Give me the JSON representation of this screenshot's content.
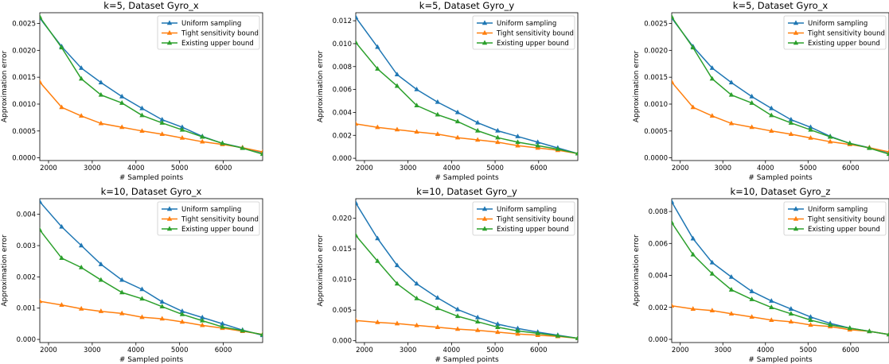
{
  "colors": {
    "uniform": "#1f77b4",
    "tight": "#ff7f0e",
    "existing": "#2ca02c"
  },
  "chart_data": [
    {
      "type": "line",
      "title": "k=5, Dataset Gyro_x",
      "xlabel": "# Sampled points",
      "ylabel": "Approximation error",
      "xlim": [
        1800,
        6900
      ],
      "ylim": [
        -5e-05,
        0.0027
      ],
      "xticks": [
        2000,
        3000,
        4000,
        5000,
        6000
      ],
      "xtick_labels": [
        "2000",
        "3000",
        "4000",
        "5000",
        "6000"
      ],
      "yticks": [
        0,
        0.0005,
        0.001,
        0.0015,
        0.002,
        0.0025
      ],
      "ytick_labels": [
        "0.0000",
        "0.0005",
        "0.0010",
        "0.0015",
        "0.0020",
        "0.0025"
      ],
      "legend_position": "top-right",
      "x": [
        1800,
        2300,
        2750,
        3200,
        3680,
        4140,
        4600,
        5060,
        5520,
        5980,
        6440,
        6900
      ],
      "series": [
        {
          "name": "Uniform sampling",
          "color_key": "uniform",
          "values": [
            0.0026,
            0.00207,
            0.00167,
            0.0014,
            0.00114,
            0.00092,
            0.00071,
            0.00057,
            0.0004,
            0.00027,
            0.00019,
            0.0001
          ]
        },
        {
          "name": "Tight sensitivity bound",
          "color_key": "tight",
          "values": [
            0.00141,
            0.00094,
            0.00078,
            0.00064,
            0.00057,
            0.0005,
            0.00044,
            0.00037,
            0.0003,
            0.00025,
            0.00019,
            0.00011
          ]
        },
        {
          "name": "Existing upper bound",
          "color_key": "existing",
          "values": [
            0.00262,
            0.00205,
            0.00147,
            0.00117,
            0.00102,
            0.00079,
            0.00065,
            0.00052,
            0.00039,
            0.00027,
            0.00018,
            7e-05
          ]
        }
      ]
    },
    {
      "type": "line",
      "title": "k=5, Dataset Gyro_y",
      "xlabel": "# Sampled points",
      "ylabel": "Approximation error",
      "xlim": [
        1800,
        6900
      ],
      "ylim": [
        -0.0002,
        0.0127
      ],
      "xticks": [
        2000,
        3000,
        4000,
        5000,
        6000
      ],
      "xtick_labels": [
        "2000",
        "3000",
        "4000",
        "5000",
        "6000"
      ],
      "yticks": [
        0,
        0.002,
        0.004,
        0.006,
        0.008,
        0.01,
        0.012
      ],
      "ytick_labels": [
        "0.000",
        "0.002",
        "0.004",
        "0.006",
        "0.008",
        "0.010",
        "0.012"
      ],
      "legend_position": "top-right",
      "x": [
        1800,
        2300,
        2750,
        3200,
        3680,
        4140,
        4600,
        5060,
        5520,
        5980,
        6440,
        6900
      ],
      "series": [
        {
          "name": "Uniform sampling",
          "color_key": "uniform",
          "values": [
            0.0123,
            0.0097,
            0.0073,
            0.006,
            0.0049,
            0.004,
            0.0031,
            0.0024,
            0.0019,
            0.0014,
            0.0009,
            0.0004
          ]
        },
        {
          "name": "Tight sensitivity bound",
          "color_key": "tight",
          "values": [
            0.003,
            0.0027,
            0.0025,
            0.0023,
            0.0021,
            0.0018,
            0.0016,
            0.0014,
            0.0011,
            0.0009,
            0.0007,
            0.0004
          ]
        },
        {
          "name": "Existing upper bound",
          "color_key": "existing",
          "values": [
            0.0101,
            0.0078,
            0.0063,
            0.0046,
            0.0038,
            0.0032,
            0.0024,
            0.0018,
            0.0014,
            0.0011,
            0.0008,
            0.0004
          ]
        }
      ]
    },
    {
      "type": "line",
      "title": "k=5, Dataset Gyro_x",
      "xlabel": "# Sampled points",
      "ylabel": "Approximation error",
      "xlim": [
        1800,
        6900
      ],
      "ylim": [
        -5e-05,
        0.0027
      ],
      "xticks": [
        2000,
        3000,
        4000,
        5000,
        6000
      ],
      "xtick_labels": [
        "2000",
        "3000",
        "4000",
        "5000",
        "6000"
      ],
      "yticks": [
        0,
        0.0005,
        0.001,
        0.0015,
        0.002,
        0.0025
      ],
      "ytick_labels": [
        "0.0000",
        "0.0005",
        "0.0010",
        "0.0015",
        "0.0020",
        "0.0025"
      ],
      "legend_position": "top-right",
      "x": [
        1800,
        2300,
        2750,
        3200,
        3680,
        4140,
        4600,
        5060,
        5520,
        5980,
        6440,
        6900
      ],
      "series": [
        {
          "name": "Uniform sampling",
          "color_key": "uniform",
          "values": [
            0.0026,
            0.00207,
            0.00167,
            0.0014,
            0.00114,
            0.00092,
            0.00071,
            0.00057,
            0.0004,
            0.00027,
            0.00019,
            0.0001
          ]
        },
        {
          "name": "Tight sensitivity bound",
          "color_key": "tight",
          "values": [
            0.00141,
            0.00094,
            0.00078,
            0.00064,
            0.00057,
            0.0005,
            0.00044,
            0.00037,
            0.0003,
            0.00025,
            0.00019,
            0.00011
          ]
        },
        {
          "name": "Existing upper bound",
          "color_key": "existing",
          "values": [
            0.00262,
            0.00205,
            0.00147,
            0.00117,
            0.00102,
            0.00079,
            0.00065,
            0.00052,
            0.00039,
            0.00027,
            0.00018,
            7e-05
          ]
        }
      ]
    },
    {
      "type": "line",
      "title": "k=10, Dataset Gyro_x",
      "xlabel": "# Sampled points",
      "ylabel": "Approximation error",
      "xlim": [
        1800,
        6900
      ],
      "ylim": [
        -0.0001,
        0.0045
      ],
      "xticks": [
        2000,
        3000,
        4000,
        5000,
        6000
      ],
      "xtick_labels": [
        "2000",
        "3000",
        "4000",
        "5000",
        "6000"
      ],
      "yticks": [
        0,
        0.001,
        0.002,
        0.003,
        0.004
      ],
      "ytick_labels": [
        "0.000",
        "0.001",
        "0.002",
        "0.003",
        "0.004"
      ],
      "legend_position": "top-right",
      "x": [
        1800,
        2300,
        2750,
        3200,
        3680,
        4140,
        4600,
        5060,
        5520,
        5980,
        6440,
        6900
      ],
      "series": [
        {
          "name": "Uniform sampling",
          "color_key": "uniform",
          "values": [
            0.0044,
            0.0036,
            0.003,
            0.0024,
            0.0019,
            0.0016,
            0.0012,
            0.0009,
            0.0007,
            0.0005,
            0.0003,
            0.00013
          ]
        },
        {
          "name": "Tight sensitivity bound",
          "color_key": "tight",
          "values": [
            0.00122,
            0.0011,
            0.00098,
            0.0009,
            0.00083,
            0.00071,
            0.00066,
            0.00056,
            0.00045,
            0.00036,
            0.00026,
            0.00016
          ]
        },
        {
          "name": "Existing upper bound",
          "color_key": "existing",
          "values": [
            0.0035,
            0.0026,
            0.0023,
            0.0019,
            0.0015,
            0.0013,
            0.00105,
            0.0008,
            0.0006,
            0.0004,
            0.00028,
            0.00015
          ]
        }
      ]
    },
    {
      "type": "line",
      "title": "k=10, Dataset Gyro_y",
      "xlabel": "# Sampled points",
      "ylabel": "Approximation error",
      "xlim": [
        1800,
        6900
      ],
      "ylim": [
        -0.0003,
        0.0232
      ],
      "xticks": [
        2000,
        3000,
        4000,
        5000,
        6000
      ],
      "xtick_labels": [
        "2000",
        "3000",
        "4000",
        "5000",
        "6000"
      ],
      "yticks": [
        0,
        0.005,
        0.01,
        0.015,
        0.02
      ],
      "ytick_labels": [
        "0.000",
        "0.005",
        "0.010",
        "0.015",
        "0.020"
      ],
      "legend_position": "top-right",
      "x": [
        1800,
        2300,
        2750,
        3200,
        3680,
        4140,
        4600,
        5060,
        5520,
        5980,
        6440,
        6900
      ],
      "series": [
        {
          "name": "Uniform sampling",
          "color_key": "uniform",
          "values": [
            0.0225,
            0.0167,
            0.0123,
            0.0093,
            0.007,
            0.0051,
            0.0038,
            0.0027,
            0.002,
            0.0014,
            0.0009,
            0.0004
          ]
        },
        {
          "name": "Tight sensitivity bound",
          "color_key": "tight",
          "values": [
            0.0033,
            0.003,
            0.0028,
            0.0025,
            0.0022,
            0.0019,
            0.0017,
            0.0014,
            0.0011,
            0.0009,
            0.0007,
            0.0004
          ]
        },
        {
          "name": "Existing upper bound",
          "color_key": "existing",
          "values": [
            0.0172,
            0.013,
            0.0093,
            0.0069,
            0.0053,
            0.004,
            0.0031,
            0.0022,
            0.0016,
            0.0012,
            0.0008,
            0.0004
          ]
        }
      ]
    },
    {
      "type": "line",
      "title": "k=10, Dataset Gyro_z",
      "xlabel": "# Sampled points",
      "ylabel": "Approximation error",
      "xlim": [
        1800,
        6900
      ],
      "ylim": [
        -0.0002,
        0.0088
      ],
      "xticks": [
        2000,
        3000,
        4000,
        5000,
        6000
      ],
      "xtick_labels": [
        "2000",
        "3000",
        "4000",
        "5000",
        "6000"
      ],
      "yticks": [
        0,
        0.002,
        0.004,
        0.006,
        0.008
      ],
      "ytick_labels": [
        "0.000",
        "0.002",
        "0.004",
        "0.006",
        "0.008"
      ],
      "legend_position": "top-right",
      "x": [
        1800,
        2300,
        2750,
        3200,
        3680,
        4140,
        4600,
        5060,
        5520,
        5980,
        6440,
        6900
      ],
      "series": [
        {
          "name": "Uniform sampling",
          "color_key": "uniform",
          "values": [
            0.0086,
            0.0063,
            0.0048,
            0.0039,
            0.003,
            0.0024,
            0.0019,
            0.0014,
            0.001,
            0.0007,
            0.0005,
            0.0003
          ]
        },
        {
          "name": "Tight sensitivity bound",
          "color_key": "tight",
          "values": [
            0.0021,
            0.0019,
            0.0018,
            0.0016,
            0.0014,
            0.0012,
            0.0011,
            0.0009,
            0.0008,
            0.0006,
            0.0005,
            0.0003
          ]
        },
        {
          "name": "Existing upper bound",
          "color_key": "existing",
          "values": [
            0.0073,
            0.0053,
            0.0041,
            0.0031,
            0.0025,
            0.002,
            0.0016,
            0.0012,
            0.0009,
            0.0007,
            0.0005,
            0.0003
          ]
        }
      ]
    }
  ]
}
